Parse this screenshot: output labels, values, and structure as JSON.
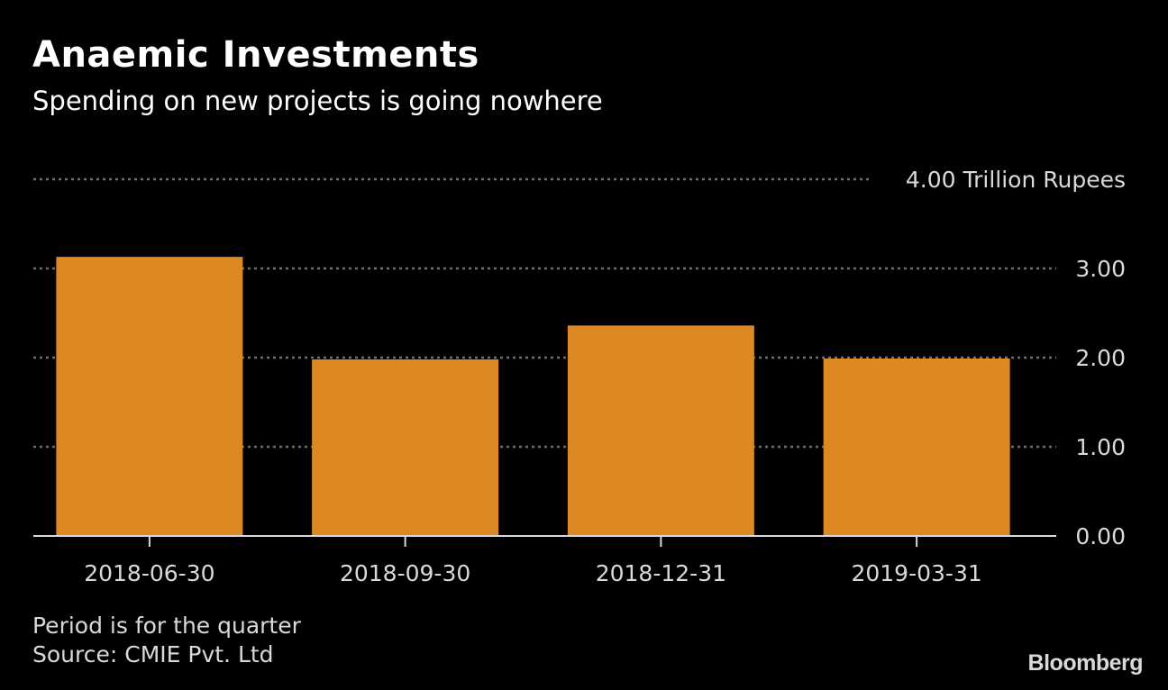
{
  "chart_data": {
    "type": "bar",
    "title": "Anaemic Investments",
    "subtitle": "Spending on new projects is going nowhere",
    "categories": [
      "2018-06-30",
      "2018-09-30",
      "2018-12-31",
      "2019-03-31"
    ],
    "values": [
      3.13,
      1.98,
      2.36,
      1.99
    ],
    "unit_label": "Trillion Rupees",
    "yticks": [
      "0.00",
      "1.00",
      "2.00",
      "3.00",
      "4.00"
    ],
    "ytick_values": [
      0,
      1,
      2,
      3,
      4
    ],
    "top_tick_label": "4.00 Trillion Rupees",
    "ylim": [
      0,
      4
    ],
    "xlabel": "",
    "ylabel": "",
    "grid": true,
    "bar_color": "#dc8823",
    "notes": [
      "Period is for the quarter",
      "Source: CMIE Pvt. Ltd"
    ],
    "brand": "Bloomberg"
  }
}
